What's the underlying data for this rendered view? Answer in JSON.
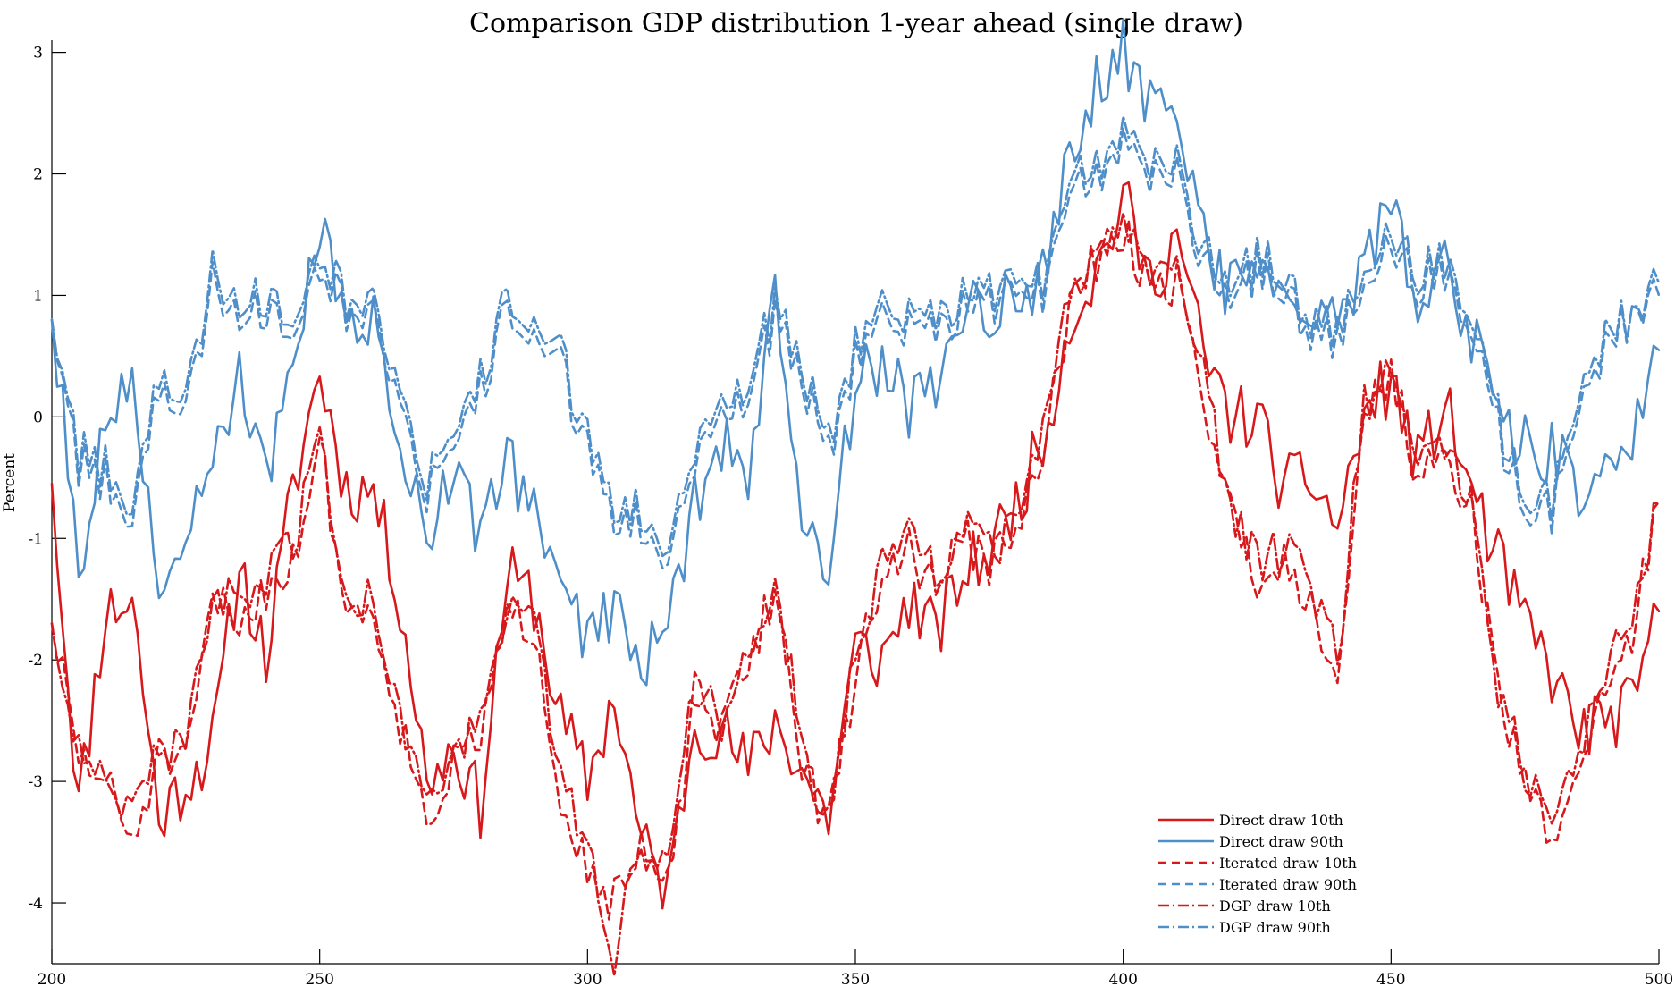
{
  "chart_data": {
    "type": "line",
    "title": "Comparison GDP distribution 1-year ahead (single draw)",
    "xlabel": "",
    "ylabel": "Percent",
    "xlim": [
      200,
      500
    ],
    "ylim": [
      -4.5,
      3.1
    ],
    "xticks": [
      200,
      250,
      300,
      350,
      400,
      450,
      500
    ],
    "yticks": [
      -4,
      -3,
      -2,
      -1,
      0,
      1,
      2,
      3
    ],
    "grid": false,
    "legend_position": "bottom-right-inside",
    "colors": {
      "red": "#d7191c",
      "blue": "#4f8fc9"
    },
    "anchor_x": [
      200,
      205,
      210,
      215,
      220,
      225,
      230,
      235,
      240,
      245,
      250,
      255,
      260,
      265,
      270,
      275,
      280,
      285,
      290,
      295,
      300,
      305,
      310,
      315,
      320,
      325,
      330,
      335,
      340,
      345,
      350,
      355,
      360,
      365,
      370,
      375,
      380,
      385,
      390,
      395,
      400,
      405,
      410,
      415,
      420,
      425,
      430,
      435,
      440,
      445,
      450,
      455,
      460,
      465,
      470,
      475,
      480,
      485,
      490,
      495,
      500
    ],
    "series": [
      {
        "name": "Direct draw 10th",
        "color": "#d7191c",
        "dash": "solid",
        "values": [
          -0.55,
          -3.2,
          -1.6,
          -1.5,
          -3.3,
          -3.0,
          -2.7,
          -1.2,
          -2.0,
          -0.6,
          0.38,
          -0.6,
          -0.6,
          -1.5,
          -3.0,
          -2.7,
          -3.2,
          -1.3,
          -1.5,
          -2.5,
          -3.0,
          -2.3,
          -3.5,
          -3.9,
          -2.5,
          -2.6,
          -2.9,
          -2.5,
          -2.9,
          -3.3,
          -1.9,
          -2.0,
          -1.5,
          -1.8,
          -1.3,
          -1.1,
          -0.7,
          -0.2,
          0.8,
          1.2,
          1.8,
          1.1,
          1.5,
          0.5,
          0.0,
          0.0,
          -0.6,
          -0.5,
          -0.9,
          0.0,
          0.3,
          -0.4,
          0.1,
          -0.6,
          -1.2,
          -1.7,
          -2.1,
          -2.6,
          -2.5,
          -2.4,
          -1.6
        ]
      },
      {
        "name": "Direct draw 90th",
        "color": "#4f8fc9",
        "dash": "solid",
        "values": [
          0.8,
          -1.25,
          0.0,
          0.2,
          -1.35,
          -1.05,
          -0.5,
          0.3,
          -0.6,
          0.6,
          1.6,
          0.6,
          0.8,
          -0.1,
          -0.9,
          -0.5,
          -1.0,
          -0.3,
          -0.8,
          -1.3,
          -1.8,
          -1.6,
          -2.1,
          -1.7,
          -0.7,
          -0.2,
          -0.4,
          0.9,
          -0.7,
          -1.3,
          0.3,
          0.4,
          0.1,
          0.3,
          0.9,
          0.8,
          1.0,
          1.2,
          2.3,
          2.7,
          3.05,
          2.5,
          2.7,
          1.4,
          1.0,
          1.3,
          1.2,
          0.8,
          0.7,
          1.3,
          1.7,
          1.0,
          1.2,
          0.7,
          0.0,
          -0.2,
          -0.3,
          -0.6,
          -0.5,
          -0.2,
          0.55
        ]
      },
      {
        "name": "Iterated draw 10th",
        "color": "#d7191c",
        "dash": "9 6",
        "values": [
          -1.7,
          -2.8,
          -3.0,
          -3.5,
          -2.8,
          -2.9,
          -1.5,
          -1.7,
          -1.4,
          -1.2,
          -0.2,
          -1.6,
          -1.6,
          -2.5,
          -3.3,
          -2.9,
          -2.6,
          -1.7,
          -1.7,
          -3.1,
          -3.7,
          -4.0,
          -3.6,
          -3.9,
          -2.3,
          -2.6,
          -2.0,
          -1.4,
          -2.8,
          -3.4,
          -2.1,
          -1.3,
          -1.1,
          -1.4,
          -1.0,
          -1.2,
          -1.0,
          -0.3,
          0.9,
          1.3,
          1.5,
          1.1,
          1.1,
          0.2,
          -0.8,
          -1.3,
          -1.2,
          -1.5,
          -2.1,
          0.0,
          0.4,
          -0.5,
          -0.4,
          -0.7,
          -2.3,
          -3.0,
          -3.5,
          -2.9,
          -2.2,
          -1.8,
          -0.7
        ]
      },
      {
        "name": "Iterated draw 90th",
        "color": "#4f8fc9",
        "dash": "9 6",
        "values": [
          0.8,
          -0.4,
          -0.5,
          -0.8,
          0.3,
          0.0,
          1.1,
          0.9,
          0.9,
          0.8,
          1.3,
          0.9,
          0.8,
          0.2,
          -0.6,
          -0.4,
          0.2,
          0.9,
          0.6,
          0.4,
          -0.3,
          -0.8,
          -0.9,
          -1.2,
          -0.3,
          0.1,
          0.2,
          0.8,
          0.3,
          -0.3,
          0.5,
          0.9,
          0.7,
          0.7,
          0.9,
          0.9,
          1.1,
          1.0,
          1.8,
          2.0,
          2.2,
          1.9,
          2.0,
          1.3,
          1.0,
          1.2,
          1.1,
          0.7,
          0.6,
          1.2,
          1.4,
          1.1,
          1.2,
          0.8,
          -0.1,
          -0.8,
          -0.8,
          0.0,
          0.6,
          0.8,
          1.0
        ]
      },
      {
        "name": "DGP draw 10th",
        "color": "#d7191c",
        "dash": "12 4 2 4",
        "values": [
          -1.7,
          -2.7,
          -2.9,
          -3.3,
          -2.7,
          -2.8,
          -1.4,
          -1.6,
          -1.3,
          -1.1,
          -0.1,
          -1.5,
          -1.5,
          -2.4,
          -3.2,
          -2.8,
          -2.5,
          -1.6,
          -1.6,
          -3.0,
          -3.6,
          -4.45,
          -3.5,
          -3.8,
          -2.2,
          -2.5,
          -1.9,
          -1.3,
          -2.7,
          -3.3,
          -2.0,
          -1.2,
          -1.0,
          -1.3,
          -0.9,
          -1.1,
          -0.9,
          -0.2,
          1.0,
          1.4,
          1.6,
          1.2,
          1.2,
          0.3,
          -0.7,
          -1.2,
          -1.1,
          -1.4,
          -2.0,
          0.1,
          0.5,
          -0.4,
          -0.3,
          -0.6,
          -2.2,
          -2.9,
          -3.4,
          -2.8,
          -2.1,
          -1.7,
          -0.7
        ]
      },
      {
        "name": "DGP draw 90th",
        "color": "#4f8fc9",
        "dash": "12 4 2 4",
        "values": [
          0.8,
          -0.3,
          -0.4,
          -0.7,
          0.4,
          0.1,
          1.2,
          1.0,
          1.0,
          0.9,
          1.4,
          1.0,
          0.9,
          0.3,
          -0.5,
          -0.3,
          0.3,
          1.0,
          0.7,
          0.5,
          -0.2,
          -0.7,
          -0.8,
          -1.1,
          -0.2,
          0.2,
          0.3,
          0.9,
          0.4,
          -0.2,
          0.6,
          1.0,
          0.8,
          0.8,
          1.0,
          1.0,
          1.2,
          1.1,
          1.9,
          2.1,
          2.3,
          2.0,
          2.1,
          1.4,
          1.1,
          1.3,
          1.2,
          0.8,
          0.7,
          1.3,
          1.5,
          1.2,
          1.3,
          0.9,
          0.0,
          -0.7,
          -0.7,
          0.1,
          0.7,
          0.8,
          1.1
        ]
      }
    ]
  }
}
